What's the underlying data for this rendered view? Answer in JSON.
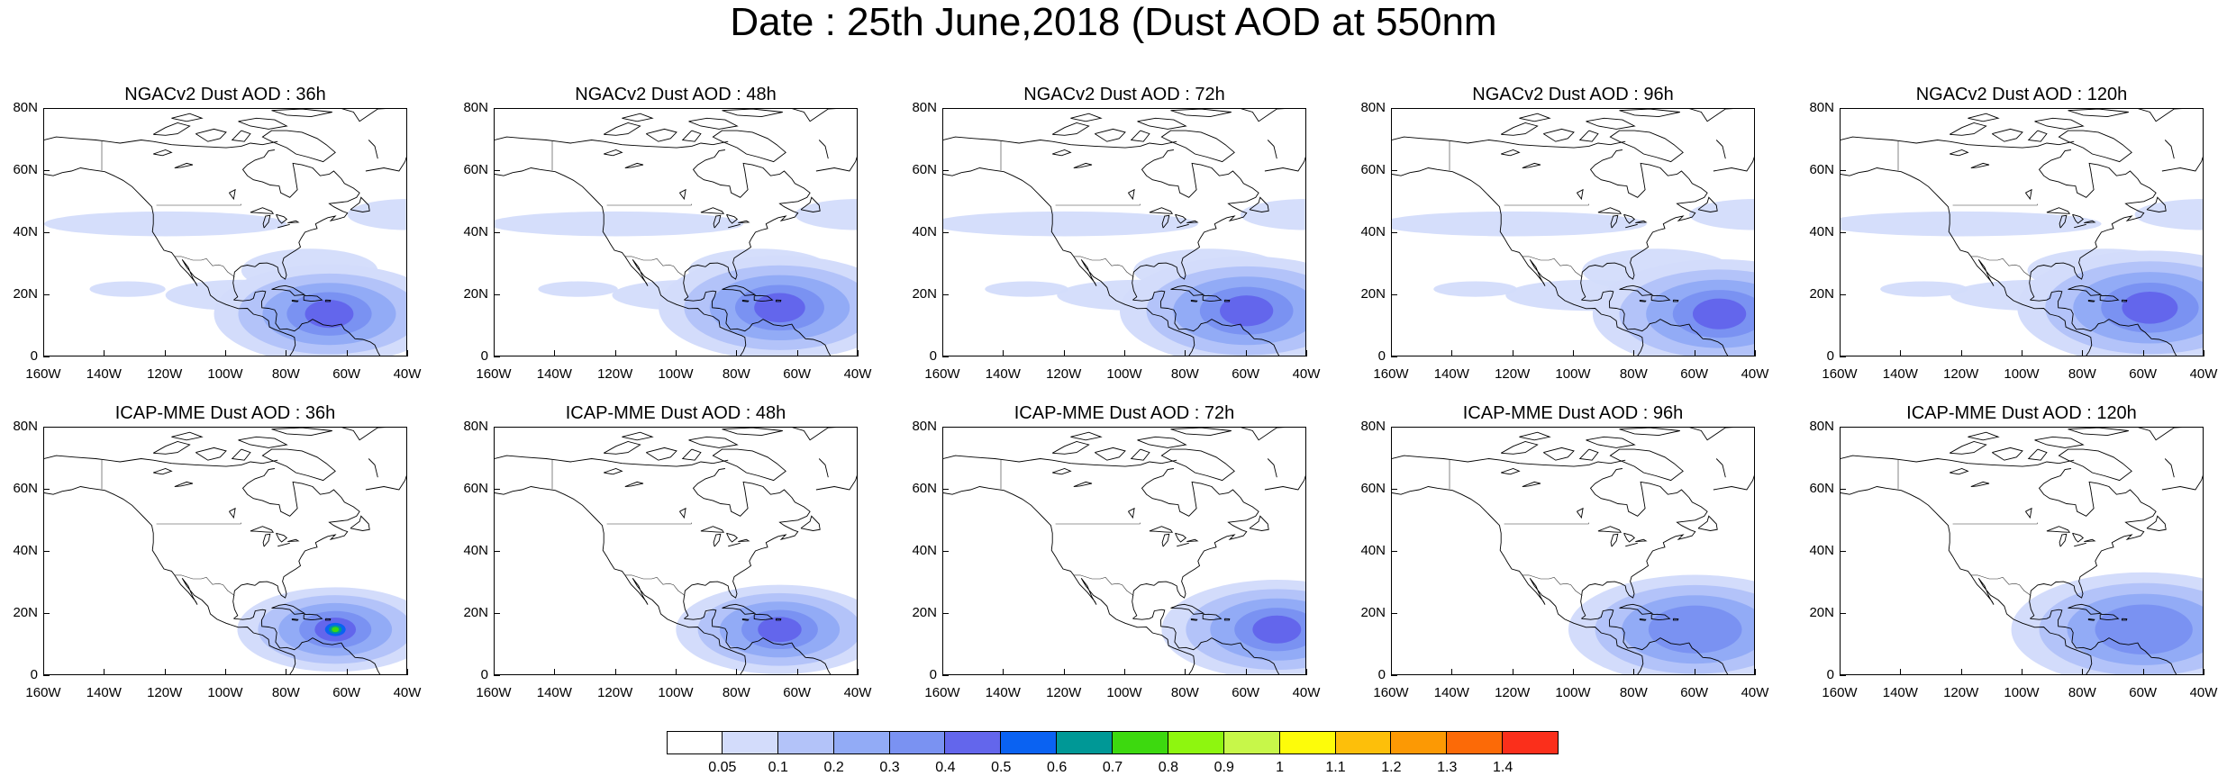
{
  "title": "Date : 25th June,2018 (Dust AOD at 550nm",
  "panels": [
    {
      "title": "NGACv2 Dust AOD : 36h",
      "row": 0,
      "col": 0,
      "dust": {
        "lon": -66,
        "lat": 14,
        "peak": 0.4,
        "extent": 1.0,
        "upper": 0.05
      }
    },
    {
      "title": "NGACv2 Dust AOD : 48h",
      "row": 0,
      "col": 1,
      "dust": {
        "lon": -66,
        "lat": 16,
        "peak": 0.4,
        "extent": 1.05,
        "upper": 0.05
      }
    },
    {
      "title": "NGACv2 Dust AOD : 72h",
      "row": 0,
      "col": 2,
      "dust": {
        "lon": -60,
        "lat": 15,
        "peak": 0.4,
        "extent": 1.1,
        "upper": 0.05
      }
    },
    {
      "title": "NGACv2 Dust AOD : 96h",
      "row": 0,
      "col": 3,
      "dust": {
        "lon": -52,
        "lat": 14,
        "peak": 0.4,
        "extent": 1.1,
        "upper": 0.05
      }
    },
    {
      "title": "NGACv2 Dust AOD : 120h",
      "row": 0,
      "col": 4,
      "dust": {
        "lon": -58,
        "lat": 16,
        "peak": 0.4,
        "extent": 1.15,
        "upper": 0.05
      }
    },
    {
      "title": "ICAP-MME Dust AOD : 36h",
      "row": 1,
      "col": 0,
      "dust": {
        "lon": -64,
        "lat": 15,
        "peak": 0.7,
        "extent": 0.85,
        "upper": 0
      }
    },
    {
      "title": "ICAP-MME Dust AOD : 48h",
      "row": 1,
      "col": 1,
      "dust": {
        "lon": -66,
        "lat": 15,
        "peak": 0.4,
        "extent": 0.9,
        "upper": 0
      }
    },
    {
      "title": "ICAP-MME Dust AOD : 72h",
      "row": 1,
      "col": 2,
      "dust": {
        "lon": -50,
        "lat": 15,
        "peak": 0.4,
        "extent": 1.0,
        "upper": 0
      }
    },
    {
      "title": "ICAP-MME Dust AOD : 96h",
      "row": 1,
      "col": 3,
      "dust": {
        "lon": -60,
        "lat": 15,
        "peak": 0.3,
        "extent": 1.1,
        "upper": 0
      }
    },
    {
      "title": "ICAP-MME Dust AOD : 120h",
      "row": 1,
      "col": 4,
      "dust": {
        "lon": -60,
        "lat": 15,
        "peak": 0.3,
        "extent": 1.15,
        "upper": 0
      }
    }
  ],
  "lat_ticks": [
    "80N",
    "60N",
    "40N",
    "20N",
    "0"
  ],
  "lat_values": [
    80,
    60,
    40,
    20,
    0
  ],
  "lon_ticks": [
    "160W",
    "140W",
    "120W",
    "100W",
    "80W",
    "60W",
    "40W"
  ],
  "lon_values": [
    -160,
    -140,
    -120,
    -100,
    -80,
    -60,
    -40
  ],
  "map_extent": {
    "lon_min": -160,
    "lon_max": -40,
    "lat_min": 0,
    "lat_max": 80
  },
  "colorbar": {
    "levels": [
      "0.05",
      "0.1",
      "0.2",
      "0.3",
      "0.4",
      "0.5",
      "0.6",
      "0.7",
      "0.8",
      "0.9",
      "1",
      "1.1",
      "1.2",
      "1.3",
      "1.4"
    ],
    "colors": [
      "#ffffff",
      "#d3dcfb",
      "#b3c3f9",
      "#92abf6",
      "#7a92f2",
      "#6366ec",
      "#0a62f2",
      "#009896",
      "#3dd90f",
      "#8ef60f",
      "#c7f749",
      "#fdfc0a",
      "#fdbf0a",
      "#fc9904",
      "#fc6a07",
      "#fb2f1b"
    ]
  }
}
